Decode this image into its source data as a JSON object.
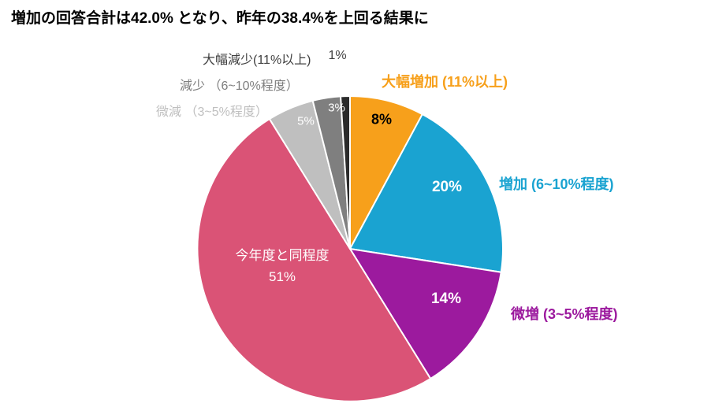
{
  "chart_data": {
    "type": "pie",
    "title": "増加の回答合計は42.0% となり、昨年の38.4%を上回る結果に",
    "units": "%",
    "direction": "clockwise",
    "start_angle_deg": 0,
    "legend_position": "none",
    "slices": [
      {
        "name": "大幅増加 (11%以上)",
        "value": 8,
        "color": "#F7A01B",
        "value_label": "8%",
        "value_label_color": "#000000"
      },
      {
        "name": "増加 (6~10%程度)",
        "value": 20,
        "color": "#1AA3D1",
        "value_label": "20%",
        "value_label_color": "#FFFFFF"
      },
      {
        "name": "微増 (3~5%程度)",
        "value": 14,
        "color": "#9C1A9E",
        "value_label": "14%",
        "value_label_color": "#FFFFFF"
      },
      {
        "name": "今年度と同程度",
        "value": 51,
        "color": "#DA5376",
        "value_label": "51%",
        "value_label_color": "#FFFFFF"
      },
      {
        "name": "微減 (3~5%程度)",
        "value": 5,
        "color": "#BFBFBF",
        "value_label": "5%",
        "value_label_color": "#FFFFFF"
      },
      {
        "name": "減少 (6~10%程度)",
        "value": 3,
        "color": "#7F7F7F",
        "value_label": "3%",
        "value_label_color": "#FFFFFF"
      },
      {
        "name": "大幅減少(11%以上)",
        "value": 1,
        "color": "#2B2B2B",
        "value_label": "1%",
        "value_label_color": "#FFFFFF"
      }
    ],
    "callouts": [
      {
        "text": "大幅減少(11%以上)",
        "suffix": "1%",
        "color": "#404040"
      },
      {
        "text": "減少 （6~10%程度）",
        "color": "#7F7F7F"
      },
      {
        "text": "微減 （3~5%程度）",
        "color": "#BFBFBF"
      },
      {
        "text": "大幅増加 (11%以上)",
        "color": "#F7A01B"
      },
      {
        "text": "増加 (6~10%程度)",
        "color": "#1AA3D1"
      },
      {
        "text": "微増 (3~5%程度)",
        "color": "#9C1A9E"
      }
    ]
  }
}
